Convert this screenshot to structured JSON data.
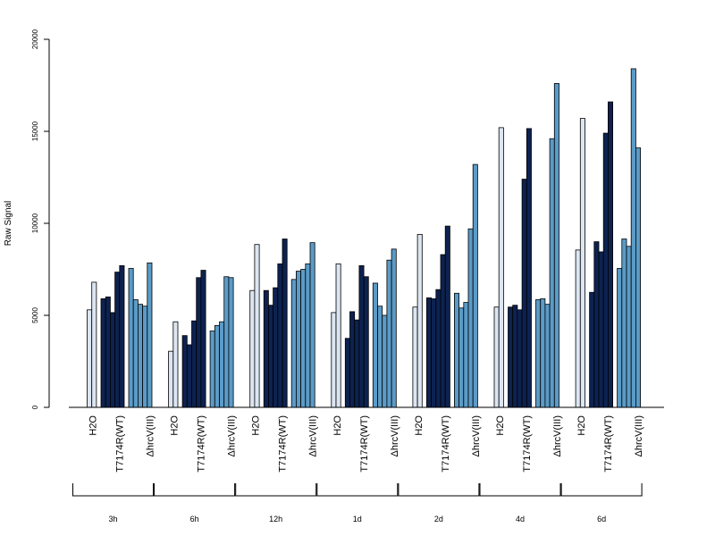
{
  "chart_data": {
    "type": "bar",
    "ylabel": "Raw Signal",
    "ylim": [
      0,
      20000
    ],
    "yticks": [
      0,
      5000,
      10000,
      15000,
      20000
    ],
    "ytick_labels": [
      "0",
      "5000",
      "10000",
      "15000",
      "20000"
    ],
    "colors": {
      "H2O": "#dce6f2",
      "T7174R(WT)": "#0d2250",
      "ΔhrcV(III)": "#5b9bc7"
    },
    "groups": [
      {
        "label": "3h",
        "conditions": [
          {
            "name": "H2O",
            "values": [
              5300,
              6800
            ]
          },
          {
            "name": "T7174R(WT)",
            "values": [
              5900,
              6000,
              5150,
              7350,
              7700
            ]
          },
          {
            "name": "ΔhrcV(III)",
            "values": [
              7550,
              5850,
              5600,
              5500,
              7850
            ]
          }
        ]
      },
      {
        "label": "6h",
        "conditions": [
          {
            "name": "H2O",
            "values": [
              3050,
              4650
            ]
          },
          {
            "name": "T7174R(WT)",
            "values": [
              3900,
              3400,
              4700,
              7050,
              7450
            ]
          },
          {
            "name": "ΔhrcV(III)",
            "values": [
              4150,
              4450,
              4650,
              7100,
              7050
            ]
          }
        ]
      },
      {
        "label": "12h",
        "conditions": [
          {
            "name": "H2O",
            "values": [
              6350,
              8850
            ]
          },
          {
            "name": "T7174R(WT)",
            "values": [
              6350,
              5550,
              6500,
              7800,
              9150
            ]
          },
          {
            "name": "ΔhrcV(III)",
            "values": [
              6950,
              7400,
              7500,
              7800,
              8950
            ]
          }
        ]
      },
      {
        "label": "1d",
        "conditions": [
          {
            "name": "H2O",
            "values": [
              5150,
              7800
            ]
          },
          {
            "name": "T7174R(WT)",
            "values": [
              3750,
              5200,
              4750,
              7700,
              7100
            ]
          },
          {
            "name": "ΔhrcV(III)",
            "values": [
              6750,
              5500,
              5000,
              8000,
              8600
            ]
          }
        ]
      },
      {
        "label": "2d",
        "conditions": [
          {
            "name": "H2O",
            "values": [
              5450,
              9400
            ]
          },
          {
            "name": "T7174R(WT)",
            "values": [
              5950,
              5900,
              6400,
              8300,
              9850
            ]
          },
          {
            "name": "ΔhrcV(III)",
            "values": [
              6200,
              5400,
              5700,
              9700,
              13200
            ]
          }
        ]
      },
      {
        "label": "4d",
        "conditions": [
          {
            "name": "H2O",
            "values": [
              5450,
              15200
            ]
          },
          {
            "name": "T7174R(WT)",
            "values": [
              5450,
              5550,
              5300,
              12400,
              15150
            ]
          },
          {
            "name": "ΔhrcV(III)",
            "values": [
              5850,
              5900,
              5600,
              14600,
              17600
            ]
          }
        ]
      },
      {
        "label": "6d",
        "conditions": [
          {
            "name": "H2O",
            "values": [
              8550,
              15700
            ]
          },
          {
            "name": "T7174R(WT)",
            "values": [
              6250,
              9000,
              8450,
              14900,
              16600
            ]
          },
          {
            "name": "ΔhrcV(III)",
            "values": [
              7550,
              9150,
              8750,
              18400,
              14100
            ]
          }
        ]
      }
    ]
  }
}
